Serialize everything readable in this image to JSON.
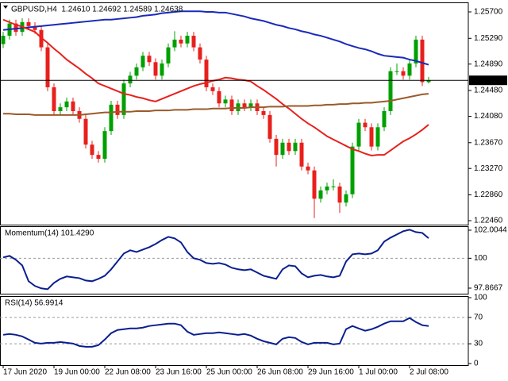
{
  "chart_data": [
    {
      "type": "candlestick",
      "title": "GBPUSD,H4  1.24610 1.24692 1.24589 1.24638",
      "categories": [
        "17 Jun 2020",
        null,
        null,
        null,
        null,
        null,
        null,
        null,
        "19 Jun 00:00",
        null,
        null,
        null,
        null,
        null,
        null,
        null,
        "22 Jun 08:00",
        null,
        null,
        null,
        null,
        null,
        null,
        null,
        "23 Jun 16:00",
        null,
        null,
        null,
        null,
        null,
        null,
        null,
        "25 Jun 00:00",
        null,
        null,
        null,
        null,
        null,
        null,
        null,
        "26 Jun 08:00",
        null,
        null,
        null,
        null,
        null,
        null,
        null,
        "29 Jun 16:00",
        null,
        null,
        null,
        null,
        null,
        null,
        null,
        "1 Jul 00:00",
        null,
        null,
        null,
        null,
        null,
        null,
        null,
        "2 Jul 08:00",
        null,
        null,
        null
      ],
      "open": [
        1.252,
        1.2533,
        1.2552,
        1.2539,
        1.2554,
        1.2548,
        1.2542,
        1.2515,
        1.2453,
        1.2416,
        1.2422,
        1.2431,
        1.2416,
        1.2404,
        1.2364,
        1.2348,
        1.2342,
        1.2385,
        1.2426,
        1.241,
        1.2459,
        1.2471,
        1.2484,
        1.2502,
        1.2492,
        1.2471,
        1.249,
        1.2515,
        1.2527,
        1.2521,
        1.2533,
        1.2515,
        1.2496,
        1.2453,
        1.2447,
        1.2428,
        1.2434,
        1.2416,
        1.2428,
        1.2422,
        1.2428,
        1.2416,
        1.241,
        1.2373,
        1.2348,
        1.2367,
        1.2354,
        1.2367,
        1.233,
        1.2324,
        1.228,
        1.2293,
        1.2299,
        1.2299,
        1.2274,
        1.2287,
        1.2361,
        1.2398,
        1.2391,
        1.2361,
        1.2391,
        1.2416,
        1.2478,
        1.2478,
        1.2471,
        1.249,
        1.2527,
        1.2461
      ],
      "high": [
        1.2539,
        1.2558,
        1.2558,
        1.256,
        1.256,
        1.2554,
        1.2548,
        1.2521,
        1.2459,
        1.2428,
        1.2437,
        1.2437,
        1.2422,
        1.241,
        1.237,
        1.2354,
        1.2391,
        1.2432,
        1.2432,
        1.2465,
        1.2477,
        1.249,
        1.2508,
        1.2508,
        1.2498,
        1.2496,
        1.2521,
        1.254,
        1.2533,
        1.2539,
        1.2539,
        1.2521,
        1.2502,
        1.2459,
        1.2453,
        1.244,
        1.244,
        1.2434,
        1.2434,
        1.2434,
        1.2434,
        1.2422,
        1.2416,
        1.2379,
        1.2373,
        1.2373,
        1.2373,
        1.2373,
        1.2336,
        1.233,
        1.2299,
        1.2305,
        1.231,
        1.2305,
        1.2293,
        1.2367,
        1.2404,
        1.2404,
        1.2397,
        1.2397,
        1.2422,
        1.2484,
        1.249,
        1.2484,
        1.2496,
        1.2533,
        1.2533,
        1.24692
      ],
      "low": [
        1.2514,
        1.2527,
        1.2533,
        1.2533,
        1.2542,
        1.2536,
        1.2509,
        1.2447,
        1.241,
        1.241,
        1.2416,
        1.241,
        1.2398,
        1.2358,
        1.2342,
        1.2336,
        1.2336,
        1.2379,
        1.2404,
        1.2404,
        1.2453,
        1.2465,
        1.2478,
        1.2486,
        1.2465,
        1.2465,
        1.2484,
        1.2509,
        1.2515,
        1.2515,
        1.2509,
        1.249,
        1.2447,
        1.2441,
        1.2422,
        1.2422,
        1.241,
        1.241,
        1.2416,
        1.2416,
        1.241,
        1.2404,
        1.2367,
        1.233,
        1.2342,
        1.2348,
        1.2348,
        1.2324,
        1.2318,
        1.225,
        1.2274,
        1.2287,
        1.2293,
        1.2258,
        1.2268,
        1.2281,
        1.2355,
        1.2385,
        1.2355,
        1.2355,
        1.2385,
        1.241,
        1.2472,
        1.2465,
        1.2465,
        1.2484,
        1.2455,
        1.24589
      ],
      "close": [
        1.2533,
        1.2552,
        1.2539,
        1.2554,
        1.2548,
        1.2542,
        1.2515,
        1.2453,
        1.2416,
        1.2422,
        1.2431,
        1.2416,
        1.2404,
        1.2364,
        1.2348,
        1.2342,
        1.2385,
        1.2426,
        1.241,
        1.2459,
        1.2471,
        1.2484,
        1.2502,
        1.2492,
        1.2471,
        1.249,
        1.2515,
        1.2527,
        1.2521,
        1.2533,
        1.2515,
        1.2496,
        1.2453,
        1.2447,
        1.2428,
        1.2434,
        1.2416,
        1.2428,
        1.2422,
        1.2428,
        1.2416,
        1.241,
        1.2373,
        1.2348,
        1.2367,
        1.2354,
        1.2367,
        1.233,
        1.2324,
        1.228,
        1.2293,
        1.2299,
        1.2299,
        1.2274,
        1.2287,
        1.2361,
        1.2398,
        1.2391,
        1.2361,
        1.2391,
        1.2416,
        1.2478,
        1.2478,
        1.2471,
        1.249,
        1.2527,
        1.2461,
        1.24638
      ],
      "up_color": "#00a000",
      "down_color": "#e8201c",
      "series": [
        {
          "color": "#1a2ab8",
          "values": [
            1.2542,
            1.2543,
            1.2544,
            1.2545,
            1.2546,
            1.2547,
            1.2548,
            1.2549,
            1.255,
            1.2551,
            1.2552,
            1.2553,
            1.2554,
            1.2555,
            1.2556,
            1.2557,
            1.2558,
            1.2558,
            1.2559,
            1.256,
            1.2561,
            1.2562,
            1.2564,
            1.2565,
            1.2566,
            1.2568,
            1.2569,
            1.257,
            1.2571,
            1.2571,
            1.2571,
            1.2571,
            1.257,
            1.257,
            1.2569,
            1.2569,
            1.2567,
            1.2565,
            1.2563,
            1.256,
            1.2558,
            1.2556,
            1.2553,
            1.255,
            1.2548,
            1.2545,
            1.2543,
            1.254,
            1.2538,
            1.2535,
            1.2533,
            1.253,
            1.2527,
            1.2524,
            1.252,
            1.2517,
            1.2514,
            1.2512,
            1.2509,
            1.2505,
            1.2502,
            1.2501,
            1.25,
            1.2499,
            1.2496,
            1.2494,
            1.2491,
            1.2488
          ]
        },
        {
          "color": "#e8201c",
          "values": [
            1.2558,
            1.2554,
            1.255,
            1.2547,
            1.2543,
            1.2539,
            1.253,
            1.2522,
            1.2513,
            1.2505,
            1.2496,
            1.2489,
            1.2482,
            1.2474,
            1.2467,
            1.2459,
            1.2455,
            1.2451,
            1.2447,
            1.2443,
            1.2441,
            1.2438,
            1.2436,
            1.2433,
            1.2431,
            1.2435,
            1.2439,
            1.2443,
            1.2447,
            1.2451,
            1.2455,
            1.2458,
            1.246,
            1.2463,
            1.2465,
            1.2468,
            1.2467,
            1.2465,
            1.2464,
            1.2462,
            1.2455,
            1.2449,
            1.2442,
            1.2435,
            1.2427,
            1.242,
            1.2412,
            1.2404,
            1.2397,
            1.2391,
            1.2384,
            1.2377,
            1.2372,
            1.2367,
            1.2362,
            1.2357,
            1.2354,
            1.235,
            1.2347,
            1.2348,
            1.2348,
            1.2355,
            1.2362,
            1.2369,
            1.2374,
            1.238,
            1.2387,
            1.2395
          ]
        },
        {
          "color": "#9a5a2a",
          "values": [
            1.2412,
            1.2412,
            1.2411,
            1.2411,
            1.2411,
            1.241,
            1.241,
            1.241,
            1.241,
            1.241,
            1.241,
            1.241,
            1.241,
            1.2411,
            1.2412,
            1.2413,
            1.2414,
            1.2414,
            1.2415,
            1.2415,
            1.2415,
            1.2416,
            1.2416,
            1.2416,
            1.2417,
            1.2417,
            1.2417,
            1.2418,
            1.2418,
            1.2418,
            1.2419,
            1.2419,
            1.2419,
            1.242,
            1.242,
            1.242,
            1.2421,
            1.2421,
            1.2421,
            1.2422,
            1.2422,
            1.2422,
            1.2423,
            1.2423,
            1.2423,
            1.2424,
            1.2424,
            1.2424,
            1.2424,
            1.2425,
            1.2425,
            1.2426,
            1.2426,
            1.2427,
            1.2427,
            1.2428,
            1.2428,
            1.2429,
            1.2429,
            1.243,
            1.2431,
            1.2432,
            1.2434,
            1.2436,
            1.2438,
            1.244,
            1.2442,
            1.2443
          ]
        }
      ],
      "ylim": [
        1.22398,
        1.25848
      ],
      "yticks": [
        {
          "value": 1.257,
          "label": "1.25700"
        },
        {
          "value": 1.2529,
          "label": "1.25290"
        },
        {
          "value": 1.2489,
          "label": "1.24890"
        },
        {
          "value": 1.2448,
          "label": "1.24480"
        },
        {
          "value": 1.2408,
          "label": "1.24080"
        },
        {
          "value": 1.2367,
          "label": "1.23670"
        },
        {
          "value": 1.2327,
          "label": "1.23270"
        },
        {
          "value": 1.2286,
          "label": "1.22860"
        },
        {
          "value": 1.2246,
          "label": "1.22460"
        }
      ]
    },
    {
      "type": "line",
      "title": "Momentum(14) 101.4290",
      "color": "#0a1f8f",
      "values": [
        100.06,
        100.17,
        99.89,
        99.49,
        98.36,
        98.02,
        97.85,
        97.79,
        98.24,
        98.53,
        98.7,
        98.64,
        98.58,
        98.41,
        98.36,
        98.53,
        98.75,
        99.21,
        99.77,
        100.34,
        100.57,
        100.45,
        100.62,
        100.79,
        101.02,
        101.3,
        101.53,
        101.42,
        101.13,
        100.45,
        100.0,
        99.89,
        99.66,
        99.6,
        99.66,
        99.55,
        99.32,
        99.21,
        99.15,
        99.21,
        98.98,
        98.75,
        98.64,
        98.53,
        99.21,
        99.49,
        99.43,
        98.92,
        98.64,
        98.75,
        98.81,
        98.7,
        98.64,
        98.75,
        99.77,
        100.28,
        100.34,
        100.28,
        100.34,
        100.57,
        101.19,
        101.47,
        101.7,
        101.93,
        102.04,
        101.87,
        101.81,
        101.429
      ],
      "ylim": [
        97.47,
        102.288
      ],
      "yticks": [
        102.0044,
        100,
        97.8667
      ],
      "levels": [
        100
      ]
    },
    {
      "type": "line",
      "title": "RSI(14) 56.9914",
      "color": "#0a1f8f",
      "values": [
        43.6,
        44.8,
        43.6,
        41.2,
        36.4,
        31.5,
        30.3,
        31.5,
        31.5,
        32.7,
        31.5,
        30.3,
        26.7,
        25.5,
        25.5,
        27.9,
        36.4,
        46.1,
        50.9,
        52.1,
        53.3,
        53.3,
        54.5,
        57.0,
        58.2,
        59.4,
        60.6,
        60.6,
        58.2,
        48.5,
        43.6,
        44.8,
        46.1,
        46.1,
        47.3,
        46.1,
        44.8,
        43.6,
        44.8,
        42.4,
        37.6,
        33.9,
        31.5,
        29.1,
        37.6,
        40.0,
        38.8,
        32.7,
        29.1,
        31.5,
        31.5,
        31.5,
        29.1,
        30.3,
        52.1,
        57.0,
        53.3,
        49.7,
        52.1,
        55.8,
        60.6,
        64.2,
        64.2,
        64.2,
        69.1,
        63.0,
        58.2,
        56.9914
      ],
      "ylim": [
        -2.4,
        102.4
      ],
      "yticks": [
        100,
        70,
        30,
        0
      ],
      "levels": [
        70,
        30
      ]
    }
  ]
}
